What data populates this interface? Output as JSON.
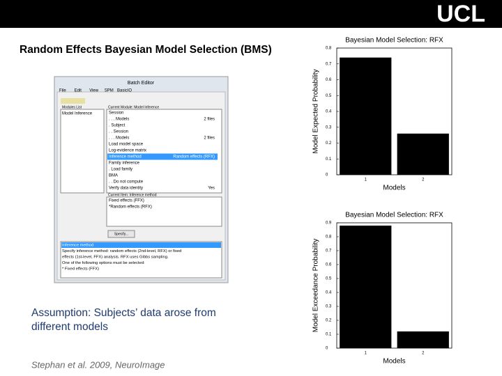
{
  "logo": "UCL",
  "slide_title": "Random Effects Bayesian Model Selection (BMS)",
  "caption": [
    "Assumption: Subjects’ data arose from",
    "different models"
  ],
  "citation": "Stephan et al. 2009, NeuroImage",
  "batch_editor": {
    "title": "Batch Editor",
    "menu": [
      "File",
      "Edit",
      "View",
      "SPM",
      "BasicIO"
    ],
    "modules_header": "Modules List",
    "modules": [
      "Model Inference"
    ],
    "current_module_header": "Current Module: Model Inference",
    "items": [
      [
        "Session",
        null
      ],
      [
        ". . . Models",
        "2 files"
      ],
      [
        ". Subject",
        null
      ],
      [
        ". . Session",
        null
      ],
      [
        ". . . Models",
        "2 files"
      ],
      [
        "Load model space",
        null
      ],
      [
        "Log-evidence matrix",
        null
      ],
      [
        "Inference method",
        "Random effects (RFX)"
      ],
      [
        "Family inference",
        null
      ],
      [
        ". Load family",
        null
      ],
      [
        "BMA",
        null
      ],
      [
        ". . Do not compute",
        null
      ],
      [
        "Verify data identity",
        "Yes"
      ]
    ],
    "current_item_header": "Current Item: Inference method",
    "options": [
      "Fixed effects (FFX)",
      "*Random effects (RFX)"
    ],
    "button": "Specify...",
    "help": [
      "Inference method",
      "Specify inference method: random effects (2nd-level, RFX) or fixed",
      "effects (1st-level, FFX) analysis. RFX uses Gibbs sampling.",
      "One of the following options must be selected:",
      "* Fixed effects (FFX)"
    ]
  },
  "chart_data": [
    {
      "type": "bar",
      "title": "Bayesian Model Selection: RFX",
      "xlabel": "Models",
      "ylabel": "Model Expected Probability",
      "categories": [
        "1",
        "2"
      ],
      "values": [
        0.74,
        0.26
      ],
      "color": "#000000",
      "ylim": [
        0,
        0.8
      ],
      "yticks": [
        0,
        0.1,
        0.2,
        0.3,
        0.4,
        0.5,
        0.6,
        0.7,
        0.8
      ]
    },
    {
      "type": "bar",
      "title": "Bayesian Model Selection: RFX",
      "xlabel": "Models",
      "ylabel": "Model Exceedance Probability",
      "categories": [
        "1",
        "2"
      ],
      "values": [
        0.88,
        0.12
      ],
      "color": "#000000",
      "ylim": [
        0,
        0.9
      ],
      "yticks": [
        0,
        0.1,
        0.2,
        0.3,
        0.4,
        0.5,
        0.6,
        0.7,
        0.8,
        0.9
      ]
    }
  ]
}
